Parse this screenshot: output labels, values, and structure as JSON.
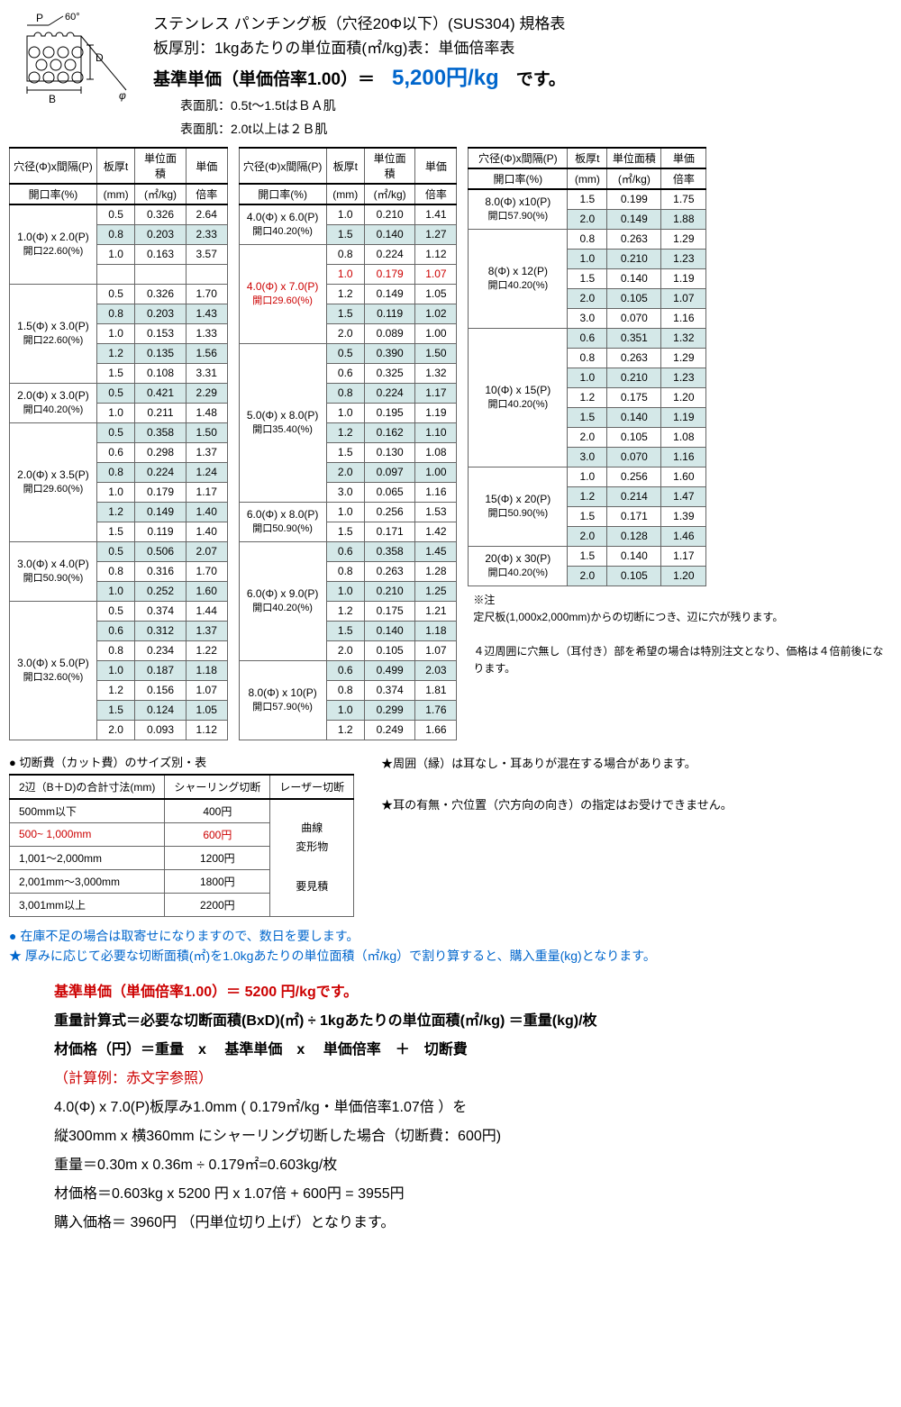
{
  "header": {
    "title1": "ステンレス パンチング板（穴径20Φ以下）(SUS304) 規格表",
    "title2": "板厚別：1kgあたりの単位面積(㎡/kg)表：単価倍率表",
    "price_label": "基準単価（単価倍率1.00）＝　",
    "price_value": "5,200円/kg",
    "price_suffix": "　です。",
    "surface1": "表面肌：0.5t～1.5tはＢＡ肌",
    "surface2": "表面肌：2.0t以上は２Ｂ肌"
  },
  "columns": {
    "label1": "穴径(Φ)x間隔(P)",
    "label2": "開口率(%)",
    "t": "板厚t",
    "t2": "(mm)",
    "area": "単位面積",
    "area2": "(㎡/kg)",
    "rate": "単価",
    "rate2": "倍率"
  },
  "tables": [
    {
      "groups": [
        {
          "label": "1.0(Φ) x 2.0(P)",
          "sub": "開口22.60(%)",
          "rows": [
            [
              "0.5",
              "0.326",
              "2.64",
              0
            ],
            [
              "0.8",
              "0.203",
              "2.33",
              1
            ],
            [
              "1.0",
              "0.163",
              "3.57",
              0
            ],
            [
              "",
              "",
              "",
              0
            ]
          ]
        },
        {
          "label": "1.5(Φ) x 3.0(P)",
          "sub": "開口22.60(%)",
          "rows": [
            [
              "0.5",
              "0.326",
              "1.70",
              0
            ],
            [
              "0.8",
              "0.203",
              "1.43",
              1
            ],
            [
              "1.0",
              "0.153",
              "1.33",
              0
            ],
            [
              "1.2",
              "0.135",
              "1.56",
              1
            ],
            [
              "1.5",
              "0.108",
              "3.31",
              0
            ]
          ]
        },
        {
          "label": "2.0(Φ) x 3.0(P)",
          "sub": "開口40.20(%)",
          "rows": [
            [
              "0.5",
              "0.421",
              "2.29",
              1
            ],
            [
              "1.0",
              "0.211",
              "1.48",
              0
            ]
          ]
        },
        {
          "label": "2.0(Φ) x 3.5(P)",
          "sub": "開口29.60(%)",
          "rows": [
            [
              "0.5",
              "0.358",
              "1.50",
              1
            ],
            [
              "0.6",
              "0.298",
              "1.37",
              0
            ],
            [
              "0.8",
              "0.224",
              "1.24",
              1
            ],
            [
              "1.0",
              "0.179",
              "1.17",
              0
            ],
            [
              "1.2",
              "0.149",
              "1.40",
              1
            ],
            [
              "1.5",
              "0.119",
              "1.40",
              0
            ]
          ]
        },
        {
          "label": "3.0(Φ) x 4.0(P)",
          "sub": "開口50.90(%)",
          "rows": [
            [
              "0.5",
              "0.506",
              "2.07",
              1
            ],
            [
              "0.8",
              "0.316",
              "1.70",
              0
            ],
            [
              "1.0",
              "0.252",
              "1.60",
              1
            ]
          ]
        },
        {
          "label": "3.0(Φ) x 5.0(P)",
          "sub": "開口32.60(%)",
          "rows": [
            [
              "0.5",
              "0.374",
              "1.44",
              0
            ],
            [
              "0.6",
              "0.312",
              "1.37",
              1
            ],
            [
              "0.8",
              "0.234",
              "1.22",
              0
            ],
            [
              "1.0",
              "0.187",
              "1.18",
              1
            ],
            [
              "1.2",
              "0.156",
              "1.07",
              0
            ],
            [
              "1.5",
              "0.124",
              "1.05",
              1
            ],
            [
              "2.0",
              "0.093",
              "1.12",
              0
            ]
          ]
        }
      ]
    },
    {
      "groups": [
        {
          "label": "4.0(Φ) x 6.0(P)",
          "sub": "開口40.20(%)",
          "rows": [
            [
              "1.0",
              "0.210",
              "1.41",
              0
            ],
            [
              "1.5",
              "0.140",
              "1.27",
              1
            ]
          ]
        },
        {
          "label": "4.0(Φ) x 7.0(P)",
          "sub": "開口29.60(%)",
          "red": true,
          "rows": [
            [
              "0.8",
              "0.224",
              "1.12",
              0
            ],
            [
              "1.0",
              "0.179",
              "1.07",
              0,
              "red"
            ],
            [
              "1.2",
              "0.149",
              "1.05",
              0
            ],
            [
              "1.5",
              "0.119",
              "1.02",
              1
            ],
            [
              "2.0",
              "0.089",
              "1.00",
              0
            ]
          ]
        },
        {
          "label": "5.0(Φ) x 8.0(P)",
          "sub": "開口35.40(%)",
          "rows": [
            [
              "0.5",
              "0.390",
              "1.50",
              1
            ],
            [
              "0.6",
              "0.325",
              "1.32",
              0
            ],
            [
              "0.8",
              "0.224",
              "1.17",
              1
            ],
            [
              "1.0",
              "0.195",
              "1.19",
              0
            ],
            [
              "1.2",
              "0.162",
              "1.10",
              1
            ],
            [
              "1.5",
              "0.130",
              "1.08",
              0
            ],
            [
              "2.0",
              "0.097",
              "1.00",
              1
            ],
            [
              "3.0",
              "0.065",
              "1.16",
              0
            ]
          ]
        },
        {
          "label": "6.0(Φ) x 8.0(P)",
          "sub": "開口50.90(%)",
          "rows": [
            [
              "1.0",
              "0.256",
              "1.53",
              0
            ],
            [
              "1.5",
              "0.171",
              "1.42",
              0
            ]
          ]
        },
        {
          "label": "6.0(Φ) x 9.0(P)",
          "sub": "開口40.20(%)",
          "rows": [
            [
              "0.6",
              "0.358",
              "1.45",
              1
            ],
            [
              "0.8",
              "0.263",
              "1.28",
              0
            ],
            [
              "1.0",
              "0.210",
              "1.25",
              1
            ],
            [
              "1.2",
              "0.175",
              "1.21",
              0
            ],
            [
              "1.5",
              "0.140",
              "1.18",
              1
            ],
            [
              "2.0",
              "0.105",
              "1.07",
              0
            ]
          ]
        },
        {
          "label": "8.0(Φ) x 10(P)",
          "sub": "開口57.90(%)",
          "rows": [
            [
              "0.6",
              "0.499",
              "2.03",
              1
            ],
            [
              "0.8",
              "0.374",
              "1.81",
              0
            ],
            [
              "1.0",
              "0.299",
              "1.76",
              1
            ],
            [
              "1.2",
              "0.249",
              "1.66",
              0
            ]
          ]
        }
      ]
    },
    {
      "groups": [
        {
          "label": "8.0(Φ) x10(P)",
          "sub": "開口57.90(%)",
          "rows": [
            [
              "1.5",
              "0.199",
              "1.75",
              0
            ],
            [
              "2.0",
              "0.149",
              "1.88",
              1
            ]
          ]
        },
        {
          "label": "8(Φ) x 12(P)",
          "sub": "開口40.20(%)",
          "rows": [
            [
              "0.8",
              "0.263",
              "1.29",
              0
            ],
            [
              "1.0",
              "0.210",
              "1.23",
              1
            ],
            [
              "1.5",
              "0.140",
              "1.19",
              0
            ],
            [
              "2.0",
              "0.105",
              "1.07",
              1
            ],
            [
              "3.0",
              "0.070",
              "1.16",
              0
            ]
          ]
        },
        {
          "label": "10(Φ) x 15(P)",
          "sub": "開口40.20(%)",
          "rows": [
            [
              "0.6",
              "0.351",
              "1.32",
              1
            ],
            [
              "0.8",
              "0.263",
              "1.29",
              0
            ],
            [
              "1.0",
              "0.210",
              "1.23",
              1
            ],
            [
              "1.2",
              "0.175",
              "1.20",
              0
            ],
            [
              "1.5",
              "0.140",
              "1.19",
              1
            ],
            [
              "2.0",
              "0.105",
              "1.08",
              0
            ],
            [
              "3.0",
              "0.070",
              "1.16",
              1
            ]
          ]
        },
        {
          "label": "15(Φ) x 20(P)",
          "sub": "開口50.90(%)",
          "rows": [
            [
              "1.0",
              "0.256",
              "1.60",
              0
            ],
            [
              "1.2",
              "0.214",
              "1.47",
              1
            ],
            [
              "1.5",
              "0.171",
              "1.39",
              0
            ],
            [
              "2.0",
              "0.128",
              "1.46",
              1
            ]
          ]
        },
        {
          "label": "20(Φ) x 30(P)",
          "sub": "開口40.20(%)",
          "rows": [
            [
              "1.5",
              "0.140",
              "1.17",
              0
            ],
            [
              "2.0",
              "0.105",
              "1.20",
              1
            ]
          ]
        }
      ],
      "note": {
        "a": "※注",
        "b": "定尺板(1,000x2,000mm)からの切断につき、辺に穴が残ります。",
        "c": "４辺周囲に穴無し（耳付き）部を希望の場合は特別注文となり、価格は４倍前後になります。"
      }
    }
  ],
  "cut": {
    "title": "● 切断費（カット費）のサイズ別・表",
    "headers": [
      "2辺（B＋D)の合計寸法(mm)",
      "シャーリング切断",
      "レーザー切断"
    ],
    "rows": [
      [
        "500mm以下",
        "400円"
      ],
      [
        "500~ 1,000mm",
        "600円",
        "red"
      ],
      [
        "1,001～2,000mm",
        "1200円"
      ],
      [
        "2,001mm～3,000mm",
        "1800円"
      ],
      [
        "3,001mm以上",
        "2200円"
      ]
    ],
    "laser": "曲線\n変形物\n\n要見積",
    "notes": {
      "n1": "★周囲（縁）は耳なし・耳ありが混在する場合があります。",
      "n2": "★耳の有無・穴位置（穴方向の向き）の指定はお受けできません。"
    }
  },
  "bottom": {
    "b1": "● 在庫不足の場合は取寄せになりますので、数日を要します。",
    "b2": "★ 厚みに応じて必要な切断面積(㎡)を1.0kgあたりの単位面積（㎡/kg）で割り算すると、購入重量(kg)となります。"
  },
  "calc": {
    "c1": "基準単価（単価倍率1.00）＝ 5200 円/kgです。",
    "c2": "重量計算式＝必要な切断面積(BxD)(㎡) ÷ 1kgあたりの単位面積(㎡/kg) ＝重量(kg)/枚",
    "c3": "材価格（円）＝重量　x　 基準単価　x　 単価倍率　＋　切断費",
    "c4": "（計算例：赤文字参照）",
    "c5": "4.0(Φ) x 7.0(P)板厚み1.0mm ( 0.179㎡/kg・単価倍率1.07倍 ）を",
    "c6": "縦300mm x 横360mm にシャーリング切断した場合（切断費：600円)",
    "c7": "重量＝0.30m x 0.36m ÷ 0.179㎡=0.603kg/枚",
    "c8": "材価格＝0.603kg x 5200 円 x 1.07倍 + 600円 = 3955円",
    "c9": "購入価格＝ 3960円 （円単位切り上げ）となります。"
  }
}
